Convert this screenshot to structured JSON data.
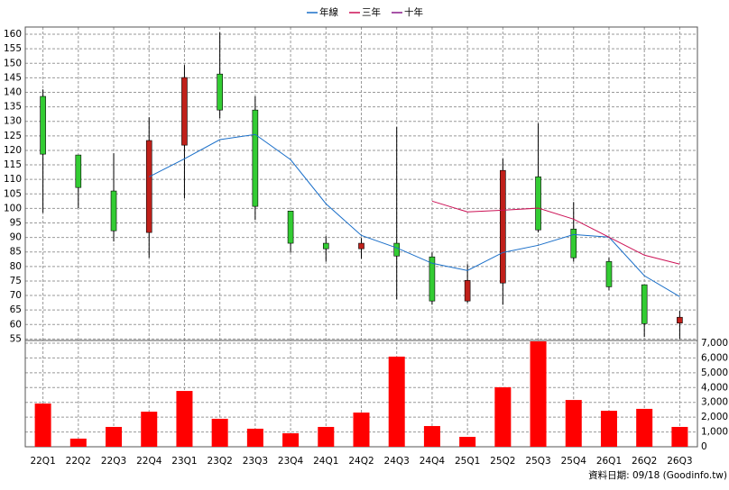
{
  "chart_data": [
    {
      "type": "candlestick",
      "categories": [
        "22Q1",
        "22Q2",
        "22Q3",
        "22Q4",
        "23Q1",
        "23Q2",
        "23Q3",
        "23Q4",
        "24Q1",
        "24Q2",
        "24Q3",
        "24Q4",
        "25Q1",
        "25Q2",
        "25Q3",
        "25Q4",
        "26Q1",
        "26Q2",
        "26Q3"
      ],
      "open": [
        138.6,
        118.4,
        106,
        91.7,
        121.8,
        146.3,
        133.9,
        99.1,
        88,
        86.1,
        88,
        83.3,
        68.1,
        74.3,
        110.9,
        92.9,
        81.7,
        73.7,
        60.5
      ],
      "high": [
        141,
        118.4,
        119,
        131.4,
        149.4,
        160.6,
        138.6,
        99.1,
        90.4,
        89.8,
        128,
        84.8,
        80.8,
        117.1,
        129.3,
        102.2,
        83,
        73.7,
        64.7
      ],
      "low": [
        98.5,
        100.1,
        88.6,
        83,
        103.5,
        131.1,
        96,
        84.8,
        81.7,
        82.7,
        68.7,
        66.8,
        67.5,
        66.8,
        91.7,
        81.7,
        71.8,
        55.7,
        55
      ],
      "close": [
        118.7,
        107.2,
        92.3,
        123.4,
        145.1,
        133.9,
        100.7,
        88,
        86.1,
        88,
        83.6,
        68.1,
        75.2,
        113.1,
        92.6,
        83,
        73,
        60.3,
        62.5
      ],
      "up_color": "#c0201a",
      "down_color": "#33cc33",
      "series": [
        {
          "name": "年線",
          "color": "#1a6fc9",
          "values": [
            null,
            null,
            null,
            110.9,
            117.1,
            123.7,
            125.5,
            116.8,
            101.6,
            90.7,
            86.4,
            81.1,
            78.6,
            84.8,
            87.3,
            91,
            90.1,
            76.8,
            69.6
          ]
        },
        {
          "name": "三年",
          "color": "#cc1155",
          "values": [
            null,
            null,
            null,
            null,
            null,
            null,
            null,
            null,
            null,
            null,
            null,
            102.5,
            98.8,
            99.4,
            100.1,
            96.3,
            90.1,
            83.9,
            80.8
          ]
        },
        {
          "name": "十年",
          "color": "#8a1a8a",
          "values": [
            null,
            null,
            null,
            null,
            null,
            null,
            null,
            null,
            null,
            null,
            null,
            null,
            null,
            null,
            null,
            null,
            null,
            null,
            null
          ]
        }
      ],
      "ylim": [
        54.5,
        162.5
      ],
      "yticks": [
        55,
        60,
        65,
        70,
        75,
        80,
        85,
        90,
        95,
        100,
        105,
        110,
        115,
        120,
        125,
        130,
        135,
        140,
        145,
        150,
        155,
        160
      ],
      "grid": true
    },
    {
      "type": "bar",
      "values": [
        2920,
        550,
        1340,
        2370,
        3770,
        1890,
        1220,
        910,
        1340,
        2310,
        6090,
        1400,
        670,
        4020,
        7120,
        3160,
        2430,
        2560,
        1340
      ],
      "color": "#ff0000",
      "ylim": [
        0,
        7180
      ],
      "yticks": [
        0,
        {
          "value": 1000,
          "label": "1,000"
        },
        {
          "value": 2000,
          "label": "2,000"
        },
        {
          "value": 3000,
          "label": "3,000"
        },
        {
          "value": 4000,
          "label": "4,000"
        },
        {
          "value": 5000,
          "label": "5,000"
        },
        {
          "value": 6000,
          "label": "6,000"
        },
        {
          "value": 7000,
          "label": "7,000"
        }
      ],
      "grid": true,
      "source": "資料日期: 09/18 (Goodinfo.tw)"
    }
  ]
}
